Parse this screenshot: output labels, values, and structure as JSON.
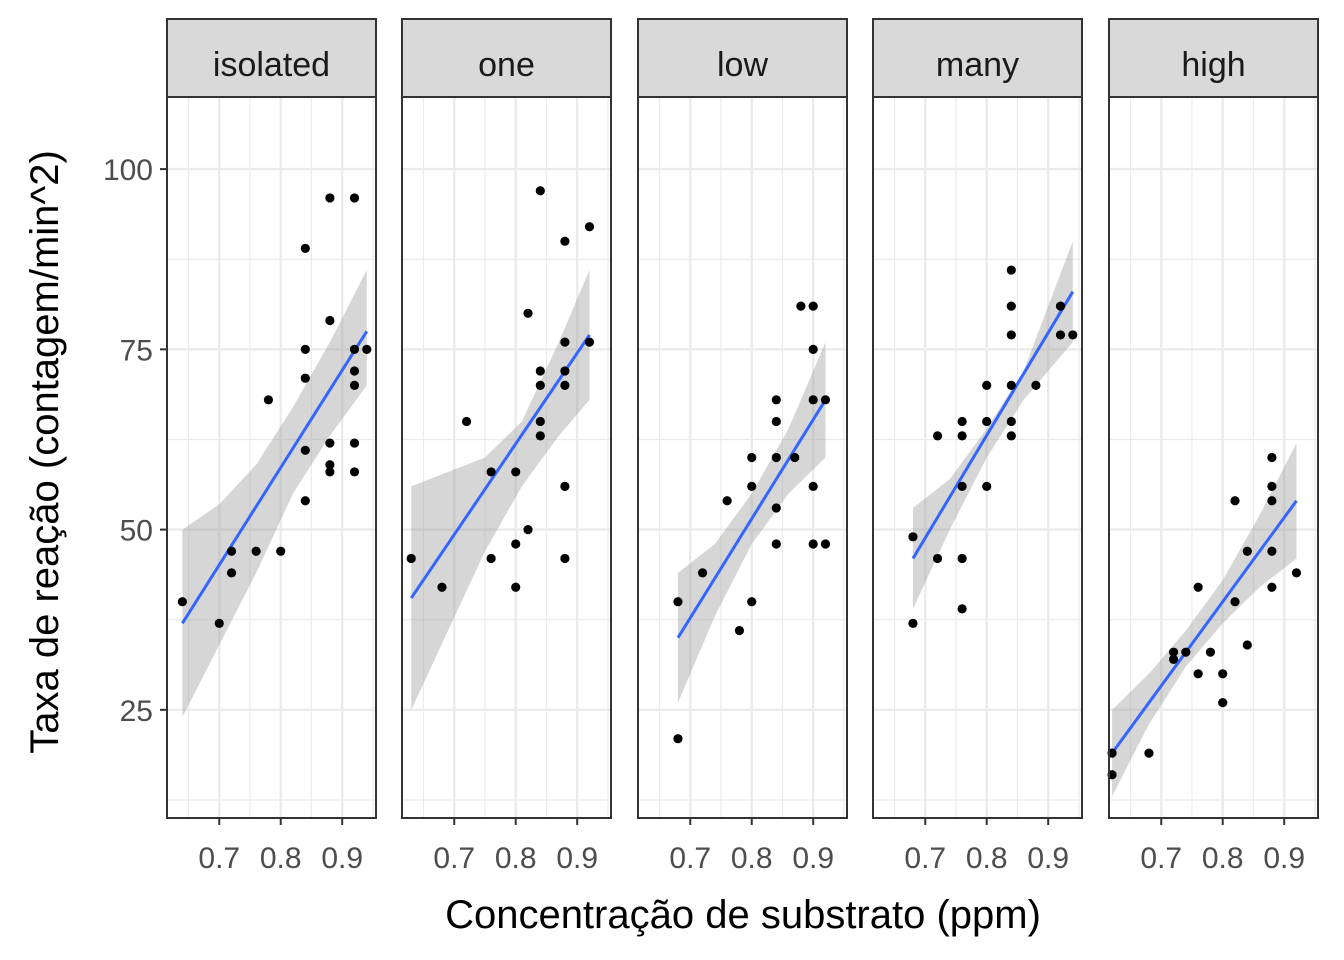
{
  "chart_data": {
    "type": "scatter",
    "xlabel": "Concentração de substrato (ppm)",
    "ylabel": "Taxa de reação (contagem/min^2)",
    "x_ticks": [
      0.7,
      0.8,
      0.9
    ],
    "y_ticks": [
      25,
      50,
      75,
      100
    ],
    "x_tick_labels": [
      "0.7",
      "0.8",
      "0.9"
    ],
    "y_tick_labels": [
      "25",
      "50",
      "75",
      "100"
    ],
    "xlim": [
      0.615,
      0.955
    ],
    "ylim": [
      10,
      110
    ],
    "grid": true,
    "smooth": "lm",
    "colors": {
      "point": "#000000",
      "fit_line": "#3366FF",
      "ribbon": "#999999",
      "strip_fill": "#D9D9D9",
      "border": "#333333",
      "grid": "#EBEBEB"
    },
    "panels": [
      {
        "name": "isolated",
        "points": [
          [
            0.64,
            40
          ],
          [
            0.7,
            37
          ],
          [
            0.72,
            47
          ],
          [
            0.72,
            44
          ],
          [
            0.76,
            47
          ],
          [
            0.78,
            68
          ],
          [
            0.8,
            47
          ],
          [
            0.84,
            89
          ],
          [
            0.84,
            75
          ],
          [
            0.84,
            71
          ],
          [
            0.84,
            61
          ],
          [
            0.84,
            54
          ],
          [
            0.88,
            96
          ],
          [
            0.88,
            79
          ],
          [
            0.88,
            62
          ],
          [
            0.88,
            59
          ],
          [
            0.88,
            58
          ],
          [
            0.92,
            96
          ],
          [
            0.92,
            75
          ],
          [
            0.92,
            72
          ],
          [
            0.92,
            70
          ],
          [
            0.92,
            62
          ],
          [
            0.92,
            58
          ],
          [
            0.94,
            75
          ]
        ],
        "fit": {
          "x": [
            0.64,
            0.94
          ],
          "y": [
            37,
            77.5
          ]
        },
        "ribbon": {
          "x": [
            0.64,
            0.7,
            0.76,
            0.82,
            0.88,
            0.94
          ],
          "lower": [
            24,
            34,
            44,
            55,
            63,
            70
          ],
          "upper": [
            50,
            53.5,
            59,
            67,
            76,
            86
          ]
        }
      },
      {
        "name": "one",
        "points": [
          [
            0.63,
            46
          ],
          [
            0.68,
            42
          ],
          [
            0.72,
            65
          ],
          [
            0.76,
            58
          ],
          [
            0.76,
            46
          ],
          [
            0.8,
            58
          ],
          [
            0.8,
            48
          ],
          [
            0.8,
            42
          ],
          [
            0.82,
            80
          ],
          [
            0.82,
            50
          ],
          [
            0.84,
            97
          ],
          [
            0.84,
            72
          ],
          [
            0.84,
            70
          ],
          [
            0.84,
            65
          ],
          [
            0.84,
            63
          ],
          [
            0.88,
            90
          ],
          [
            0.88,
            76
          ],
          [
            0.88,
            72
          ],
          [
            0.88,
            70
          ],
          [
            0.88,
            56
          ],
          [
            0.88,
            46
          ],
          [
            0.92,
            92
          ],
          [
            0.92,
            76
          ]
        ],
        "fit": {
          "x": [
            0.63,
            0.92
          ],
          "y": [
            40.5,
            77
          ]
        },
        "ribbon": {
          "x": [
            0.63,
            0.69,
            0.75,
            0.81,
            0.87,
            0.92
          ],
          "lower": [
            25,
            36,
            47,
            56,
            63,
            68
          ],
          "upper": [
            56,
            58,
            60,
            65,
            76,
            86
          ]
        }
      },
      {
        "name": "low",
        "points": [
          [
            0.68,
            40
          ],
          [
            0.68,
            21
          ],
          [
            0.72,
            44
          ],
          [
            0.76,
            54
          ],
          [
            0.78,
            36
          ],
          [
            0.8,
            60
          ],
          [
            0.8,
            56
          ],
          [
            0.8,
            40
          ],
          [
            0.84,
            68
          ],
          [
            0.84,
            65
          ],
          [
            0.84,
            60
          ],
          [
            0.84,
            53
          ],
          [
            0.84,
            48
          ],
          [
            0.87,
            60
          ],
          [
            0.88,
            81
          ],
          [
            0.9,
            81
          ],
          [
            0.9,
            75
          ],
          [
            0.9,
            68
          ],
          [
            0.9,
            56
          ],
          [
            0.9,
            48
          ],
          [
            0.92,
            68
          ],
          [
            0.92,
            48
          ]
        ],
        "fit": {
          "x": [
            0.68,
            0.92
          ],
          "y": [
            35,
            68
          ]
        },
        "ribbon": {
          "x": [
            0.68,
            0.74,
            0.8,
            0.86,
            0.92
          ],
          "lower": [
            26,
            38,
            48,
            55,
            60
          ],
          "upper": [
            44,
            48,
            55,
            64,
            76
          ]
        }
      },
      {
        "name": "many",
        "points": [
          [
            0.68,
            49
          ],
          [
            0.68,
            37
          ],
          [
            0.72,
            63
          ],
          [
            0.72,
            46
          ],
          [
            0.76,
            65
          ],
          [
            0.76,
            63
          ],
          [
            0.76,
            56
          ],
          [
            0.76,
            46
          ],
          [
            0.76,
            39
          ],
          [
            0.8,
            70
          ],
          [
            0.8,
            65
          ],
          [
            0.8,
            56
          ],
          [
            0.84,
            86
          ],
          [
            0.84,
            81
          ],
          [
            0.84,
            77
          ],
          [
            0.84,
            70
          ],
          [
            0.84,
            65
          ],
          [
            0.84,
            63
          ],
          [
            0.88,
            70
          ],
          [
            0.92,
            81
          ],
          [
            0.92,
            77
          ],
          [
            0.94,
            77
          ]
        ],
        "fit": {
          "x": [
            0.68,
            0.94
          ],
          "y": [
            46,
            83
          ]
        },
        "ribbon": {
          "x": [
            0.68,
            0.74,
            0.8,
            0.86,
            0.94
          ],
          "lower": [
            39,
            50,
            60,
            68,
            76
          ],
          "upper": [
            53,
            57,
            64,
            72,
            90
          ]
        }
      },
      {
        "name": "high",
        "points": [
          [
            0.62,
            19
          ],
          [
            0.62,
            16
          ],
          [
            0.68,
            19
          ],
          [
            0.72,
            33
          ],
          [
            0.72,
            32
          ],
          [
            0.74,
            33
          ],
          [
            0.76,
            42
          ],
          [
            0.76,
            30
          ],
          [
            0.78,
            33
          ],
          [
            0.8,
            30
          ],
          [
            0.8,
            26
          ],
          [
            0.82,
            54
          ],
          [
            0.82,
            40
          ],
          [
            0.84,
            47
          ],
          [
            0.84,
            34
          ],
          [
            0.88,
            60
          ],
          [
            0.88,
            56
          ],
          [
            0.88,
            54
          ],
          [
            0.88,
            47
          ],
          [
            0.88,
            42
          ],
          [
            0.92,
            44
          ]
        ],
        "fit": {
          "x": [
            0.62,
            0.92
          ],
          "y": [
            19,
            54
          ]
        },
        "ribbon": {
          "x": [
            0.62,
            0.68,
            0.74,
            0.8,
            0.86,
            0.92
          ],
          "lower": [
            13,
            23,
            31,
            37,
            42,
            46
          ],
          "upper": [
            25,
            30,
            36,
            43,
            52,
            62
          ]
        }
      }
    ]
  }
}
